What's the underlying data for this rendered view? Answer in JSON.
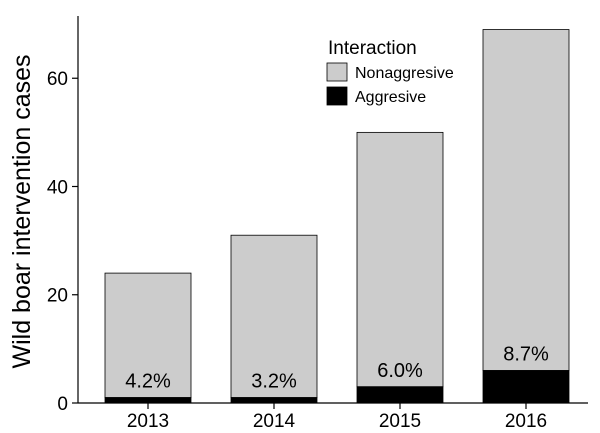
{
  "chart_data": {
    "type": "bar",
    "stacked": true,
    "categories": [
      "2013",
      "2014",
      "2015",
      "2016"
    ],
    "series": [
      {
        "name": "Aggresive",
        "color": "#000000",
        "values": [
          1,
          1,
          3,
          6
        ]
      },
      {
        "name": "Nonaggresive",
        "color": "#cccccc",
        "values": [
          23,
          30,
          47,
          63
        ]
      }
    ],
    "totals": [
      24,
      31,
      50,
      69
    ],
    "bar_labels": [
      "4.2%",
      "3.2%",
      "6.0%",
      "8.7%"
    ],
    "ylabel": "Wild boar intervention cases",
    "xlabel": "",
    "ylim": [
      0,
      70
    ],
    "yticks": [
      0,
      20,
      40,
      60
    ],
    "grid": false,
    "legend": {
      "title": "Interaction",
      "placement": "top-right",
      "items": [
        "Nonaggresive",
        "Aggresive"
      ]
    }
  }
}
